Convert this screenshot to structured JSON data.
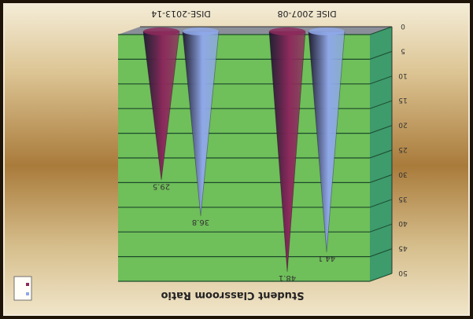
{
  "chart_data": {
    "type": "bar",
    "shape": "cone",
    "orientation": "image rotated 180 degrees",
    "title": "Student Classroom Ratio",
    "categories": [
      "DISE 2007-08",
      "DISE-2013-14"
    ],
    "series": [
      {
        "name": "",
        "color": "#8fa8e8",
        "values": [
          44.1,
          36.8
        ]
      },
      {
        "name": "",
        "color": "#8c2a5c",
        "values": [
          48.1,
          29.5
        ]
      }
    ],
    "value_labels": [
      [
        "44.1",
        "36.8"
      ],
      [
        "48.1",
        "29.5"
      ]
    ],
    "yticks": [
      0,
      5,
      10,
      15,
      20,
      25,
      30,
      35,
      40,
      45,
      50
    ],
    "ylim": [
      0,
      50
    ],
    "grid": true,
    "legend": "bottom-left",
    "colors": {
      "wall": "#6fbf5a",
      "wall_side": "#3d9b6c",
      "floor": "#8a8f99",
      "gridline": "#1d4a2c"
    }
  }
}
